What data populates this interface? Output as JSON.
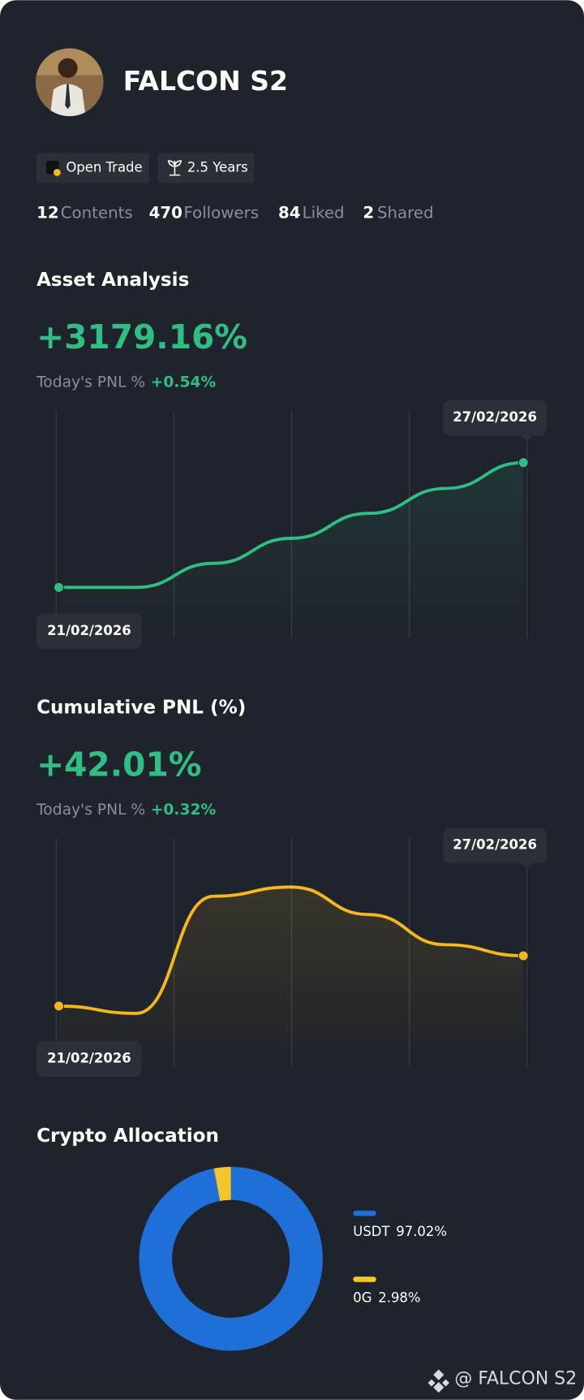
{
  "profile": {
    "name": "FALCON S2",
    "badges": [
      "Open Trade",
      "2.5 Years"
    ],
    "stats": [
      {
        "value": 12,
        "label": "Contents"
      },
      {
        "value": 470,
        "label": "Followers"
      },
      {
        "value": 84,
        "label": "Liked"
      },
      {
        "value": 2,
        "label": "Shared"
      }
    ]
  },
  "chart_data": [
    {
      "type": "line",
      "title": "Asset Analysis",
      "headline": "+3179.16%",
      "today_label": "Today's PNL %",
      "today_value": "+0.54%",
      "categories": [
        "21/02/2026",
        null,
        null,
        null,
        null,
        null,
        "27/02/2026"
      ],
      "values": [
        0,
        0,
        613,
        1249,
        1885,
        2521,
        3179.16
      ],
      "color": "#2fbf84",
      "ylim": [
        -1300,
        4500
      ]
    },
    {
      "type": "line",
      "title": "Cumulative PNL (%)",
      "headline": "+42.01%",
      "today_label": "Today's PNL %",
      "today_value": "+0.32%",
      "categories": [
        "21/02/2026",
        null,
        null,
        null,
        null,
        null,
        "27/02/2026"
      ],
      "values": [
        0,
        -6.1,
        91.7,
        99.4,
        76.4,
        51.2,
        42.01
      ],
      "color": "#f5b91c",
      "ylim": [
        -50,
        140
      ]
    },
    {
      "type": "pie",
      "title": "Crypto Allocation",
      "categories": [
        "USDT",
        "0G"
      ],
      "values": [
        97.02,
        2.98
      ],
      "value_labels": [
        "97.02%",
        "2.98%"
      ],
      "colors": [
        "#1f6fd9",
        "#f5c62a"
      ]
    }
  ],
  "watermark": "@ FALCON S2"
}
